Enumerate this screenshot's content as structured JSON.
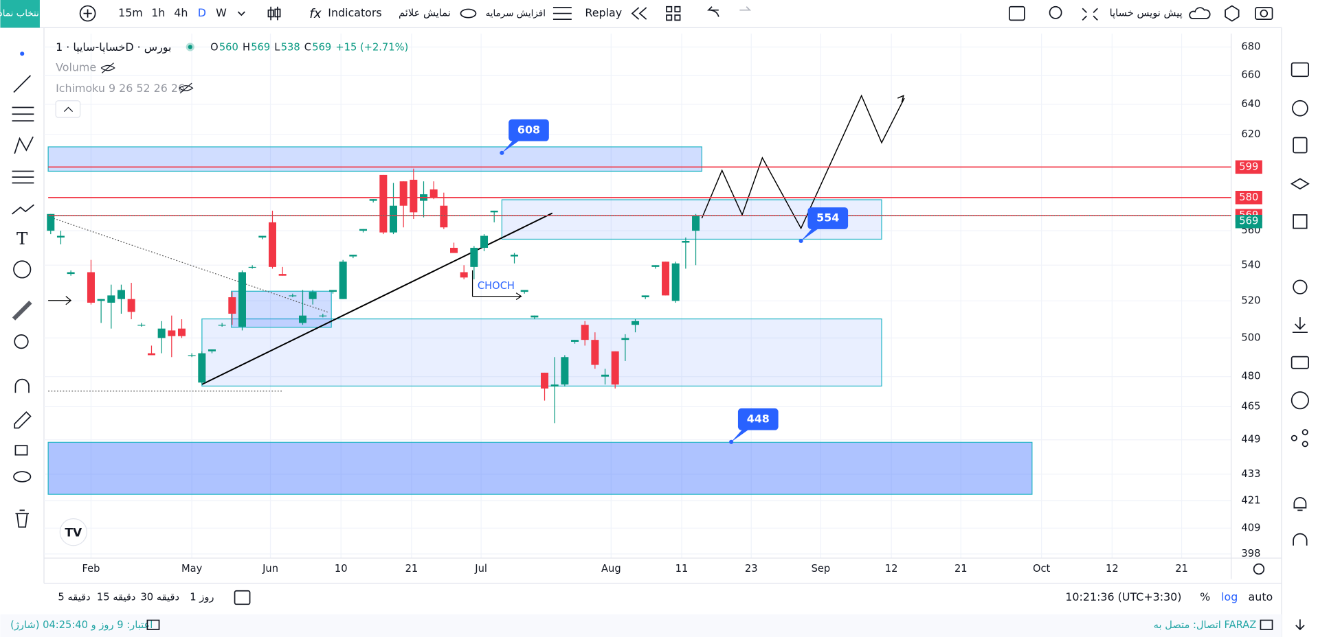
{
  "toolbar": {
    "symbol_button": "انتخاب نماد",
    "intervals": [
      "15m",
      "1h",
      "4h",
      "D",
      "W"
    ],
    "indicators": "Indicators",
    "show_signals": "نمایش علائم",
    "capital": "افزایش سرمایه",
    "replay": "Replay",
    "draft": "پیش نویس خساپا"
  },
  "chart_data": {
    "type": "candlestick",
    "title": "خساپا-سایپا · 1D · بورس",
    "ohlc_legend": [
      {
        "label": "O",
        "value": 560
      },
      {
        "label": "H",
        "value": 569
      },
      {
        "label": "L",
        "value": 538
      },
      {
        "label": "C",
        "value": 569
      }
    ],
    "change": "+15 (+2.71%)",
    "indicators": [
      "Volume",
      "Ichimoku 9 26 52 26 26"
    ],
    "x": [
      0,
      1,
      2,
      4,
      5,
      6,
      7,
      8,
      9,
      10,
      11,
      12,
      13,
      14,
      15,
      16,
      17,
      18,
      19,
      20,
      21,
      22,
      23,
      24,
      25,
      26,
      27,
      28,
      29,
      30,
      31,
      32,
      33,
      34,
      35,
      36,
      37,
      38,
      39,
      40,
      41,
      42,
      43,
      44,
      46,
      47,
      48,
      49,
      50,
      51,
      52,
      53,
      54,
      55,
      56,
      57,
      58,
      59,
      60,
      61,
      62,
      63,
      64
    ],
    "open": [
      560,
      556,
      535,
      536,
      520,
      519,
      521,
      521,
      507,
      492,
      500,
      504,
      505,
      491,
      477,
      493,
      507,
      522,
      506,
      539,
      556,
      565,
      535,
      523,
      508,
      521,
      512,
      525,
      521,
      545,
      560,
      578,
      594,
      559,
      590,
      591,
      578,
      585,
      575,
      550,
      536,
      539,
      550,
      571,
      545,
      525,
      511,
      482,
      475,
      476,
      498,
      507,
      499,
      480,
      493,
      499,
      507,
      522,
      539,
      542,
      520,
      553,
      560
    ],
    "high": [
      570,
      560,
      537,
      543,
      521,
      529,
      529,
      530,
      508,
      496,
      509,
      512,
      510,
      492,
      493,
      494,
      508,
      525,
      537,
      540,
      557,
      572,
      539,
      524,
      526,
      526,
      513,
      526,
      543,
      546,
      561,
      579,
      594,
      589,
      590,
      598,
      590,
      590,
      583,
      553,
      540,
      551,
      558,
      572,
      547,
      526,
      512,
      482,
      490,
      491,
      499,
      509,
      503,
      484,
      493,
      502,
      510,
      523,
      540,
      542,
      542,
      556,
      570
    ],
    "low": [
      558,
      552,
      534,
      518,
      508,
      505,
      513,
      510,
      506,
      491,
      492,
      490,
      500,
      490,
      476,
      492,
      506,
      507,
      504,
      538,
      555,
      538,
      534,
      522,
      507,
      518,
      511,
      524,
      521,
      544,
      559,
      577,
      558,
      558,
      562,
      567,
      568,
      579,
      561,
      547,
      532,
      532,
      548,
      565,
      541,
      524,
      510,
      468,
      457,
      475,
      497,
      496,
      484,
      476,
      474,
      488,
      503,
      521,
      538,
      523,
      519,
      538,
      540
    ],
    "close": [
      570,
      557,
      536,
      519,
      521,
      523,
      526,
      514,
      507,
      491,
      505,
      501,
      501,
      491,
      492,
      494,
      507,
      513,
      536,
      539,
      557,
      539,
      534,
      523,
      512,
      525,
      512,
      526,
      542,
      546,
      561,
      579,
      559,
      575,
      575,
      571,
      582,
      580,
      562,
      547,
      533,
      550,
      557,
      572,
      546,
      526,
      512,
      474,
      476,
      490,
      499,
      499,
      486,
      481,
      476,
      500,
      509,
      523,
      540,
      523,
      541,
      554,
      569
    ],
    "colors": {
      "up": "#089981",
      "down": "#f23645"
    },
    "xlim": [
      -0.25,
      121.7
    ],
    "xticks": [
      {
        "value": 4,
        "label": "Feb"
      },
      {
        "value": 14,
        "label": "May"
      },
      {
        "value": 21.8,
        "label": "Jun"
      },
      {
        "value": 28.8,
        "label": "10"
      },
      {
        "value": 35.8,
        "label": "21"
      },
      {
        "value": 42.7,
        "label": "Jul"
      },
      {
        "value": 55.6,
        "label": "Aug"
      },
      {
        "value": 62.6,
        "label": "11"
      },
      {
        "value": 69.5,
        "label": "23"
      },
      {
        "value": 76.4,
        "label": "Sep"
      },
      {
        "value": 83.4,
        "label": "12"
      },
      {
        "value": 90.3,
        "label": "21"
      },
      {
        "value": 98.3,
        "label": "Oct"
      },
      {
        "value": 105.3,
        "label": "12"
      },
      {
        "value": 112.2,
        "label": "21"
      }
    ],
    "ylim": [
      398,
      680
    ],
    "yticks": [
      680,
      660,
      640,
      620,
      560,
      540,
      520,
      500,
      480,
      465,
      449,
      433,
      421,
      409,
      398
    ],
    "log_scale": true,
    "grid": true,
    "price_lines": [
      {
        "value": 599,
        "color": "#f23645"
      },
      {
        "value": 580,
        "color": "#f23645"
      },
      {
        "value": 569,
        "color": "#f23645"
      }
    ],
    "last_price": {
      "value": 569,
      "color": "#089981"
    },
    "callouts": [
      608,
      554,
      448
    ],
    "annotation": "CHOCH"
  },
  "bottom_bar": {
    "timeframes": [
      "5 دقیقه",
      "15 دقیقه",
      "30 دقیقه",
      "1 روز"
    ],
    "clock": "10:21:36 (UTC+3:30)",
    "scale_options": [
      "%",
      "log",
      "auto"
    ]
  },
  "status_bar": {
    "credit": "اعتبار: 9 روز و 04:25:40 (شارژ)",
    "connection": "اتصال: متصل به FARAZ"
  }
}
